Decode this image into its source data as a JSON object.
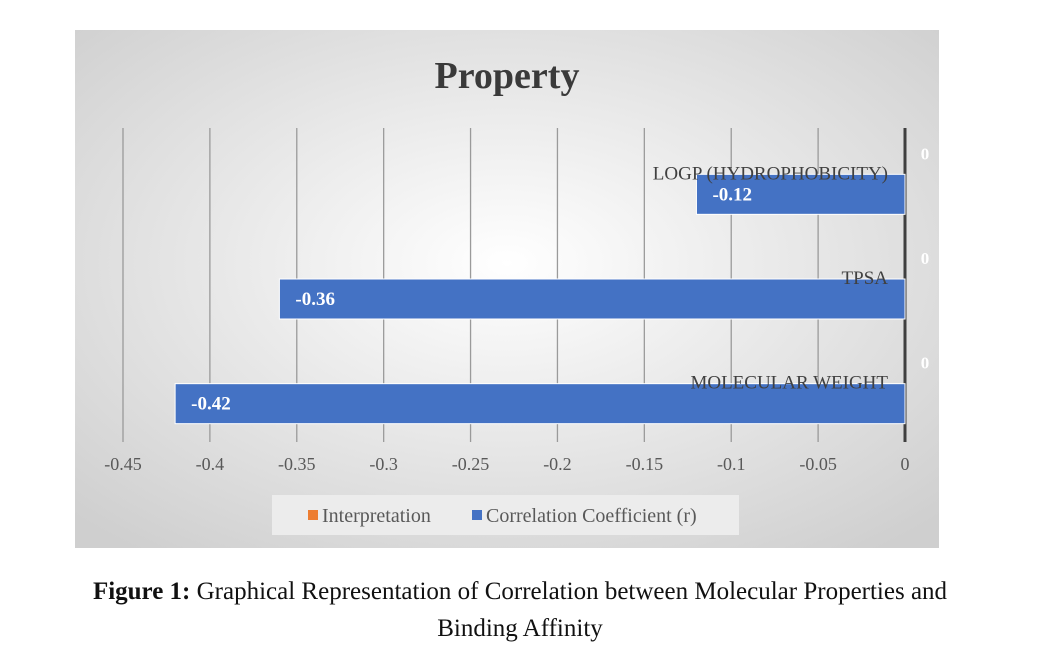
{
  "chart_data": {
    "type": "bar",
    "orientation": "horizontal",
    "title": "Property",
    "categories": [
      "MOLECULAR WEIGHT",
      "TPSA",
      "LOGP (HYDROPHOBICITY)"
    ],
    "series": [
      {
        "name": "Correlation Coefficient (r)",
        "values": [
          -0.42,
          -0.36,
          -0.12
        ],
        "color": "#4472C4"
      },
      {
        "name": "Interpretation",
        "values": [
          0,
          0,
          0
        ],
        "color": "#ED7D31"
      }
    ],
    "data_labels": {
      "correlation": [
        "-0.42",
        "-0.36",
        "-0.12"
      ],
      "interpretation": [
        "0",
        "0",
        "0"
      ]
    },
    "xlim": [
      -0.45,
      0
    ],
    "x_ticks": [
      "-0.45",
      "-0.4",
      "-0.35",
      "-0.3",
      "-0.25",
      "-0.2",
      "-0.15",
      "-0.1",
      "-0.05",
      "0"
    ],
    "grid": true,
    "legend_position": "bottom",
    "legend": [
      "Interpretation",
      "Correlation Coefficient (r)"
    ]
  },
  "caption": {
    "label": "Figure 1:",
    "text": "Graphical Representation of Correlation between Molecular Properties and",
    "text_line2": "Binding Affinity"
  }
}
